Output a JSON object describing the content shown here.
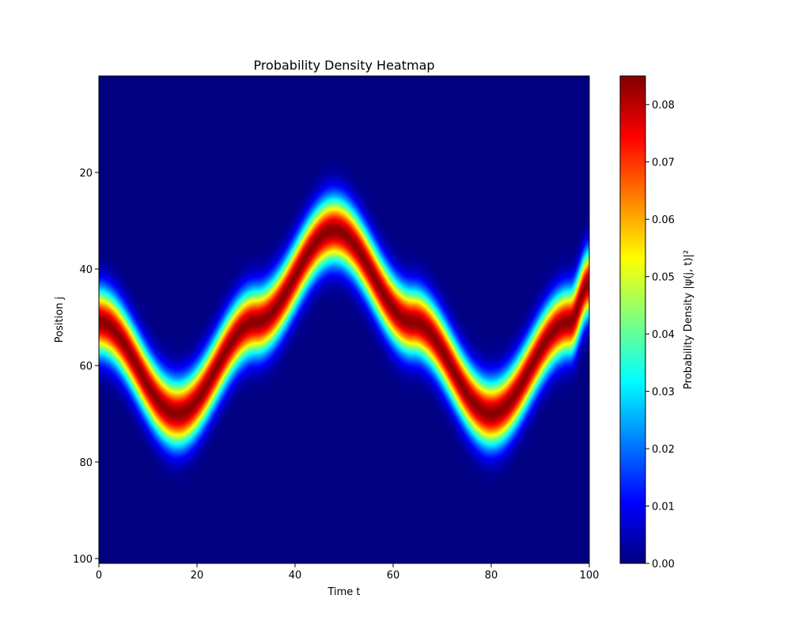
{
  "chart_data": {
    "type": "heatmap",
    "title": "Probability Density Heatmap",
    "xlabel": "Time t",
    "ylabel": "Position j",
    "colorbar_label": "Probability Density |ψ(j, t)|²",
    "colormap": "jet",
    "xlim": [
      0,
      100
    ],
    "ylim": [
      101,
      0
    ],
    "clim": [
      0,
      0.085
    ],
    "x_ticks": [
      {
        "value": 0,
        "label": "0"
      },
      {
        "value": 20,
        "label": "20"
      },
      {
        "value": 40,
        "label": "40"
      },
      {
        "value": 60,
        "label": "60"
      },
      {
        "value": 80,
        "label": "80"
      },
      {
        "value": 100,
        "label": "100"
      }
    ],
    "y_ticks": [
      {
        "value": 20,
        "label": "20"
      },
      {
        "value": 40,
        "label": "40"
      },
      {
        "value": 60,
        "label": "60"
      },
      {
        "value": 80,
        "label": "80"
      },
      {
        "value": 100,
        "label": "100"
      }
    ],
    "colorbar_ticks": [
      {
        "value": 0.0,
        "label": "0.00"
      },
      {
        "value": 0.01,
        "label": "0.01"
      },
      {
        "value": 0.02,
        "label": "0.02"
      },
      {
        "value": 0.03,
        "label": "0.03"
      },
      {
        "value": 0.04,
        "label": "0.04"
      },
      {
        "value": 0.05,
        "label": "0.05"
      },
      {
        "value": 0.06,
        "label": "0.06"
      },
      {
        "value": 0.07,
        "label": "0.07"
      },
      {
        "value": 0.08,
        "label": "0.08"
      }
    ],
    "wavepacket_center_path": {
      "x": [
        0,
        16,
        32,
        48,
        64,
        80,
        96,
        100
      ],
      "y": [
        51,
        70,
        51,
        32,
        51,
        70,
        51,
        43
      ]
    },
    "wavepacket_peak_density": 0.084,
    "wavepacket_width_j": 6.5
  }
}
